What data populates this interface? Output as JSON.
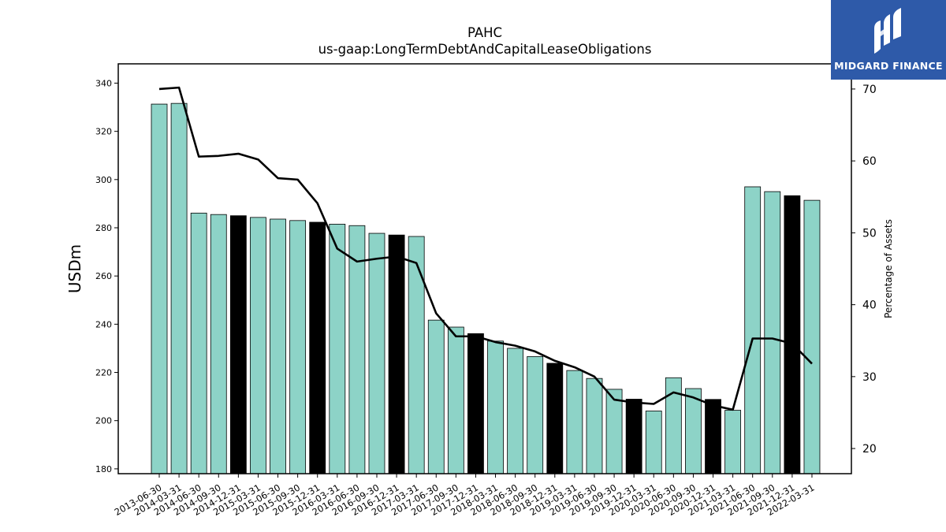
{
  "chart_data": {
    "type": "bar",
    "title": "PAHC",
    "subtitle": "us-gaap:LongTermDebtAndCapitalLeaseObligations",
    "ylabel": "USDm",
    "y2label": "Percentage of Assets",
    "ylim": [
      178,
      348
    ],
    "y2lim": [
      16.5,
      73.5
    ],
    "yticks": [
      180,
      200,
      220,
      240,
      260,
      280,
      300,
      320,
      340
    ],
    "y2ticks": [
      20,
      30,
      40,
      50,
      60,
      70
    ],
    "grid": false,
    "colors": {
      "bar": "#8dd3c7",
      "bar_highlight": "#000000",
      "line": "#000000"
    },
    "categories": [
      "2013-06-30",
      "2014-03-31",
      "2014-06-30",
      "2014-09-30",
      "2014-12-31",
      "2015-03-31",
      "2015-06-30",
      "2015-09-30",
      "2015-12-31",
      "2016-03-31",
      "2016-06-30",
      "2016-09-30",
      "2016-12-31",
      "2017-03-31",
      "2017-06-30",
      "2017-09-30",
      "2017-12-31",
      "2018-03-31",
      "2018-06-30",
      "2018-09-30",
      "2018-12-31",
      "2019-03-31",
      "2019-06-30",
      "2019-09-30",
      "2019-12-31",
      "2020-03-31",
      "2020-06-30",
      "2020-09-30",
      "2020-12-31",
      "2021-03-31",
      "2021-06-30",
      "2021-09-30",
      "2021-12-31",
      "2022-03-31"
    ],
    "series": [
      {
        "type": "bar",
        "axis": "left",
        "values": [
          331.3,
          331.6,
          286.1,
          285.5,
          285.0,
          284.3,
          283.6,
          283.0,
          282.3,
          281.5,
          280.9,
          277.7,
          277.0,
          276.4,
          241.7,
          238.8,
          236.1,
          233.0,
          230.0,
          226.6,
          223.8,
          220.8,
          217.5,
          213.0,
          208.9,
          204.0,
          217.8,
          213.3,
          208.8,
          204.3,
          297.0,
          295.0,
          293.3,
          291.4
        ],
        "highlight": [
          false,
          false,
          false,
          false,
          true,
          false,
          false,
          false,
          true,
          false,
          false,
          false,
          true,
          false,
          false,
          false,
          true,
          false,
          false,
          false,
          true,
          false,
          false,
          false,
          true,
          false,
          false,
          false,
          true,
          false,
          false,
          false,
          true,
          false
        ]
      },
      {
        "type": "line",
        "axis": "right",
        "values": [
          70.0,
          70.2,
          60.6,
          60.7,
          61.0,
          60.2,
          57.6,
          57.4,
          54.1,
          47.8,
          46.0,
          46.4,
          46.7,
          45.8,
          38.8,
          35.6,
          35.6,
          34.8,
          34.3,
          33.5,
          32.2,
          31.3,
          30.0,
          26.8,
          26.4,
          26.2,
          27.8,
          27.1,
          26.0,
          25.4,
          35.3,
          35.3,
          34.6,
          31.8
        ]
      }
    ]
  },
  "brand": {
    "name": "MIDGARD FINANCE",
    "logo_icon": "midgard-logo-icon",
    "color": "#2e5aa9"
  }
}
